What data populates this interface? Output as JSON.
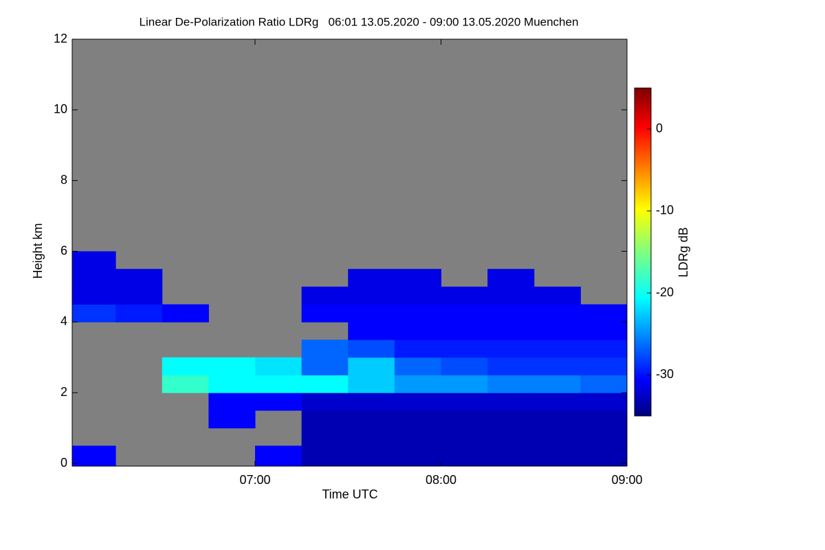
{
  "chart_data": {
    "type": "heatmap",
    "title": "Linear De-Polarization Ratio LDRg   06:01 13.05.2020 - 09:00 13.05.2020 Muenchen",
    "xlabel": "Time UTC",
    "ylabel": "Height km",
    "colorbar_label": "LDRg dB",
    "background_color": "#808080",
    "colormap": "jet",
    "x_edges": [
      361,
      375,
      390,
      405,
      420,
      435,
      450,
      465,
      480,
      495,
      510,
      525,
      540
    ],
    "y_edges": [
      0,
      0.5,
      1,
      1.5,
      2,
      2.5,
      3,
      3.5,
      4,
      4.5,
      5,
      5.5,
      6,
      6.5,
      7,
      7.5,
      8,
      8.5,
      9,
      9.5,
      10,
      10.5,
      11,
      11.5,
      12
    ],
    "z": [
      [
        -30,
        null,
        null,
        null,
        -30,
        -33,
        -33,
        -33,
        -33,
        -33,
        -33,
        -33
      ],
      [
        null,
        null,
        null,
        null,
        null,
        -33,
        -33,
        -33,
        -33,
        -33,
        -33,
        -33
      ],
      [
        null,
        null,
        null,
        -30,
        null,
        -33,
        -33,
        -33,
        -33,
        -33,
        -33,
        -33
      ],
      [
        null,
        null,
        null,
        -30,
        -30,
        -32,
        -32,
        -32,
        -32,
        -32,
        -32,
        -32
      ],
      [
        null,
        null,
        -18,
        -20,
        -20,
        -20,
        -22,
        -24,
        -24,
        -25,
        -25,
        -26
      ],
      [
        null,
        null,
        -20,
        -20,
        -21,
        -26,
        -22,
        -26,
        -27,
        -28,
        -28,
        -28
      ],
      [
        null,
        null,
        null,
        null,
        null,
        -26,
        -27,
        -29,
        -29,
        -29,
        -29,
        -29
      ],
      [
        null,
        null,
        null,
        null,
        null,
        null,
        -30,
        -30,
        -30,
        -30,
        -30,
        -30
      ],
      [
        -28,
        -29,
        -30,
        null,
        null,
        -30,
        -30,
        -30,
        -30,
        -30,
        -30,
        -30
      ],
      [
        -31,
        -31,
        null,
        null,
        null,
        -31,
        -31,
        -31,
        -31,
        -31,
        -31,
        null
      ],
      [
        -31,
        -31,
        null,
        null,
        null,
        null,
        -31,
        -31,
        null,
        -31,
        null,
        null
      ],
      [
        -31,
        null,
        null,
        null,
        null,
        null,
        null,
        null,
        null,
        null,
        null,
        null
      ],
      [
        null,
        null,
        null,
        null,
        null,
        null,
        null,
        null,
        null,
        null,
        null,
        null
      ],
      [
        null,
        null,
        null,
        null,
        null,
        null,
        null,
        null,
        null,
        null,
        null,
        null
      ],
      [
        null,
        null,
        null,
        null,
        null,
        null,
        null,
        null,
        null,
        null,
        null,
        null
      ],
      [
        null,
        null,
        null,
        null,
        null,
        null,
        null,
        null,
        null,
        null,
        null,
        null
      ],
      [
        null,
        null,
        null,
        null,
        null,
        null,
        null,
        null,
        null,
        null,
        null,
        null
      ],
      [
        null,
        null,
        null,
        null,
        null,
        null,
        null,
        null,
        null,
        null,
        null,
        null
      ],
      [
        null,
        null,
        null,
        null,
        null,
        null,
        null,
        null,
        null,
        null,
        null,
        null
      ],
      [
        null,
        null,
        null,
        null,
        null,
        null,
        null,
        null,
        null,
        null,
        null,
        null
      ],
      [
        null,
        null,
        null,
        null,
        null,
        null,
        null,
        null,
        null,
        null,
        null,
        null
      ],
      [
        null,
        null,
        null,
        null,
        null,
        null,
        null,
        null,
        null,
        null,
        null,
        null
      ],
      [
        null,
        null,
        null,
        null,
        null,
        null,
        null,
        null,
        null,
        null,
        null,
        null
      ],
      [
        null,
        null,
        null,
        null,
        null,
        null,
        null,
        null,
        null,
        null,
        null,
        null
      ]
    ],
    "xlim": [
      361,
      540
    ],
    "xticks": [
      {
        "value": 420,
        "label": "07:00"
      },
      {
        "value": 480,
        "label": "08:00"
      },
      {
        "value": 540,
        "label": "09:00"
      }
    ],
    "ylim": [
      0,
      12
    ],
    "yticks": [
      0,
      2,
      4,
      6,
      8,
      10,
      12
    ],
    "zlim": [
      -35,
      5
    ],
    "zticks": [
      0,
      -10,
      -20,
      -30
    ]
  }
}
